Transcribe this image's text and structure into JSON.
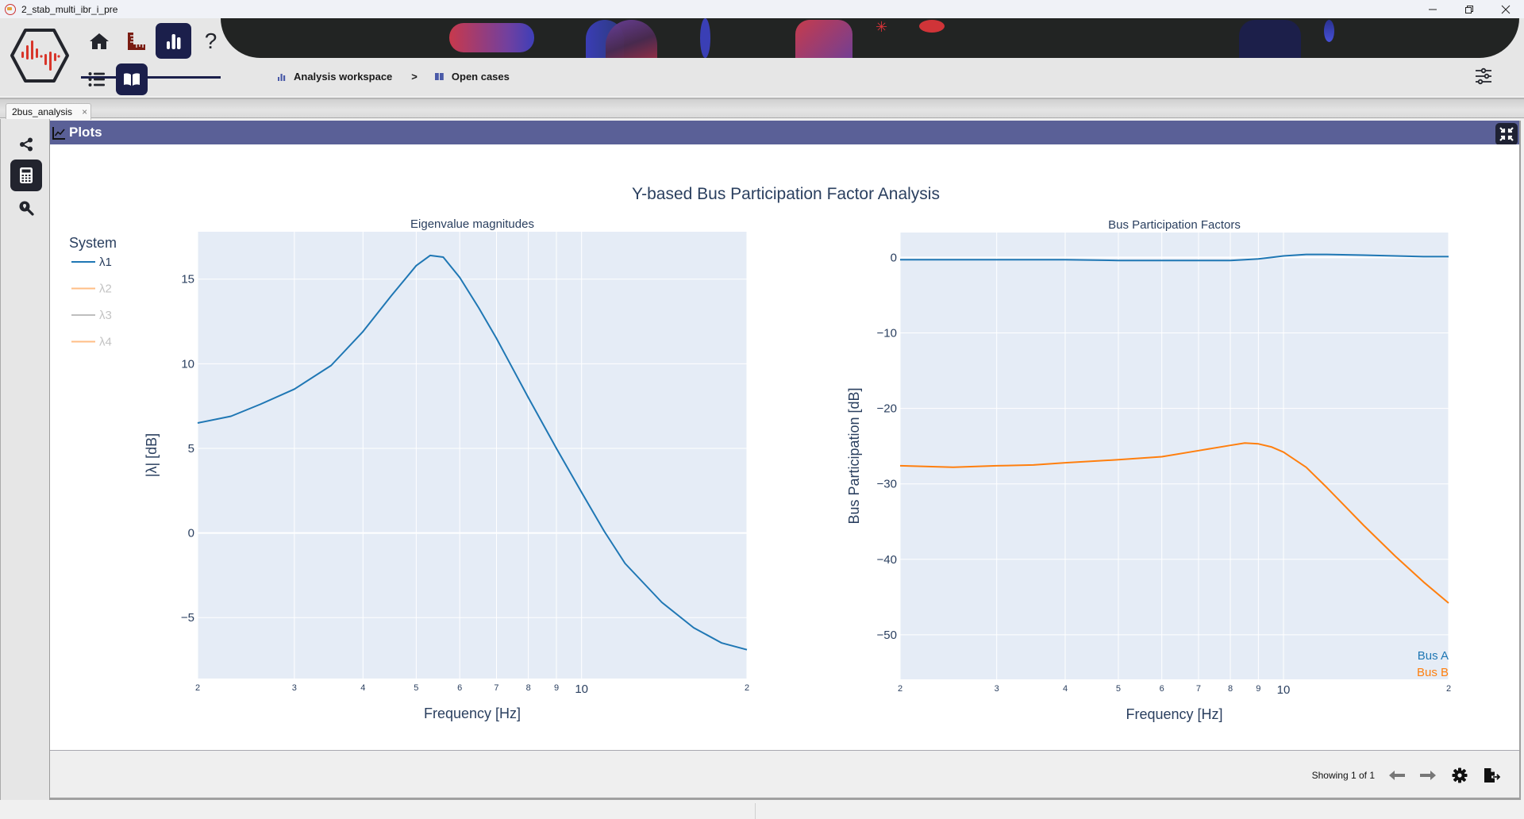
{
  "window": {
    "title": "2_stab_multi_ibr_i_pre",
    "controls": [
      "minimize",
      "restore",
      "close"
    ]
  },
  "header": {
    "nav_top": [
      {
        "name": "home",
        "icon": "home-icon",
        "active": false
      },
      {
        "name": "measure",
        "icon": "ruler-icon",
        "active": false
      },
      {
        "name": "analysis",
        "icon": "bar-chart-icon",
        "active": true
      },
      {
        "name": "help",
        "icon": "question-icon",
        "label": "?",
        "active": false
      }
    ],
    "nav_bottom": [
      {
        "name": "list",
        "icon": "list-icon",
        "active": false
      },
      {
        "name": "book",
        "icon": "book-icon",
        "active": true
      }
    ],
    "breadcrumb": [
      {
        "label": "Analysis workspace",
        "icon": "bar-chart-icon"
      },
      {
        "label": "Open cases",
        "icon": "book-icon"
      }
    ],
    "breadcrumb_separator": ">"
  },
  "tabs": [
    {
      "label": "2bus_analysis",
      "close": "×",
      "active": true
    }
  ],
  "left_rail": [
    {
      "name": "share",
      "icon": "share-icon",
      "active": false
    },
    {
      "name": "calculator",
      "icon": "calculator-icon",
      "active": true
    },
    {
      "name": "search-location",
      "icon": "search-location-icon",
      "active": false
    }
  ],
  "panel": {
    "title": "Plots",
    "footer": {
      "showing": "Showing 1 of 1"
    }
  },
  "colors": {
    "accent_navy": "#1b1f4b",
    "panel_header": "#5a6097",
    "plot_bg": "#e5ecf6",
    "series_blue": "#1f77b4",
    "series_orange": "#ff7f0e",
    "text": "#2a3f5f"
  },
  "chart_data": [
    {
      "type": "line",
      "figure_title": "Y-based Bus Participation Factor Analysis",
      "title": "Eigenvalue magnitudes",
      "xlabel": "Frequency [Hz]",
      "ylabel": "|λ| [dB]",
      "xscale": "log",
      "xlim": [
        2,
        20
      ],
      "ylim": [
        -8.6,
        17.8
      ],
      "xticks": [
        "2",
        "3",
        "4",
        "5",
        "6",
        "7",
        "8",
        "9",
        "10",
        "2"
      ],
      "yticks": [
        -5,
        0,
        5,
        10,
        15
      ],
      "grid": true,
      "legend": {
        "title": "System",
        "position": "left",
        "entries": [
          {
            "label": "λ1",
            "color": "#1f77b4",
            "visible": true
          },
          {
            "label": "λ2",
            "color": "#ff7f0e",
            "visible": false
          },
          {
            "label": "λ3",
            "color": "#7f7f7f",
            "visible": false
          },
          {
            "label": "λ4",
            "color": "#ff7f0e",
            "visible": false
          }
        ]
      },
      "x": [
        2,
        2.3,
        2.6,
        3,
        3.5,
        4,
        4.5,
        5,
        5.3,
        5.6,
        6,
        6.5,
        7,
        8,
        9,
        10,
        11,
        12,
        14,
        16,
        18,
        20
      ],
      "series": [
        {
          "name": "λ1",
          "color": "#1f77b4",
          "values": [
            6.5,
            6.9,
            7.6,
            8.5,
            9.9,
            11.9,
            14.0,
            15.8,
            16.4,
            16.3,
            15.1,
            13.3,
            11.5,
            8.0,
            5.0,
            2.4,
            0.1,
            -1.8,
            -4.1,
            -5.6,
            -6.5,
            -6.9
          ]
        }
      ]
    },
    {
      "type": "line",
      "title": "Bus Participation Factors",
      "xlabel": "Frequency [Hz]",
      "ylabel": "Bus Participation [dB]",
      "xscale": "log",
      "xlim": [
        2,
        20
      ],
      "ylim": [
        -55.9,
        3.3
      ],
      "xticks": [
        "2",
        "3",
        "4",
        "5",
        "6",
        "7",
        "8",
        "9",
        "10",
        "2"
      ],
      "yticks": [
        0,
        -10,
        -20,
        -30,
        -40,
        -50
      ],
      "grid": true,
      "legend": {
        "position": "bottom-right",
        "entries": [
          {
            "label": "Bus A",
            "color": "#1f77b4"
          },
          {
            "label": "Bus B",
            "color": "#ff7f0e"
          }
        ]
      },
      "x": [
        2,
        2.5,
        3,
        3.5,
        4,
        5,
        6,
        7,
        8,
        8.5,
        9,
        9.5,
        10,
        11,
        12,
        14,
        16,
        18,
        20
      ],
      "series": [
        {
          "name": "Bus A",
          "color": "#1f77b4",
          "values": [
            -0.3,
            -0.3,
            -0.3,
            -0.3,
            -0.3,
            -0.4,
            -0.4,
            -0.4,
            -0.4,
            -0.3,
            -0.2,
            0.0,
            0.2,
            0.4,
            0.4,
            0.3,
            0.2,
            0.1,
            0.1
          ]
        },
        {
          "name": "Bus B",
          "color": "#ff7f0e",
          "values": [
            -27.6,
            -27.8,
            -27.6,
            -27.5,
            -27.2,
            -26.8,
            -26.4,
            -25.6,
            -24.9,
            -24.6,
            -24.7,
            -25.1,
            -25.8,
            -27.8,
            -30.5,
            -35.5,
            -39.6,
            -43.0,
            -45.8
          ]
        }
      ]
    }
  ]
}
